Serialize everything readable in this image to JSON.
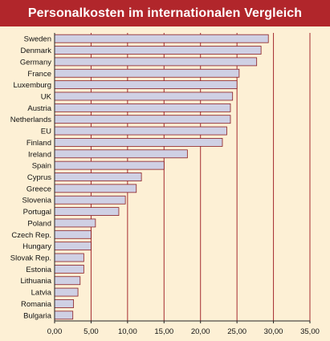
{
  "title": "Personalkosten im internationalen Vergleich",
  "colors": {
    "header": "#b1262b",
    "background": "#fdf0d5",
    "bar_fill": "#cfd0e4",
    "bar_stroke": "#8a1c22",
    "grid": "#a42a2f"
  },
  "chart_data": {
    "type": "bar",
    "orientation": "horizontal",
    "title": "Personalkosten im internationalen Vergleich",
    "categories": [
      "Sweden",
      "Denmark",
      "Germany",
      "France",
      "Luxemburg",
      "UK",
      "Austria",
      "Netherlands",
      "EU",
      "Finland",
      "Ireland",
      "Spain",
      "Cyprus",
      "Greece",
      "Slovenia",
      "Portugal",
      "Poland",
      "Czech Rep.",
      "Hungary",
      "Slovak Rep.",
      "Estonia",
      "Lithuania",
      "Latvia",
      "Romania",
      "Bulgaria"
    ],
    "values": [
      29.3,
      28.3,
      27.7,
      25.3,
      25.0,
      24.4,
      24.1,
      24.1,
      23.6,
      23.0,
      18.2,
      15.0,
      11.9,
      11.2,
      9.7,
      8.8,
      5.6,
      5.0,
      5.0,
      4.0,
      4.0,
      3.5,
      3.2,
      2.6,
      2.5
    ],
    "xlim": [
      0,
      35
    ],
    "xticks": [
      "0,00",
      "5,00",
      "10,00",
      "15,00",
      "20,00",
      "25,00",
      "30,00",
      "35,00"
    ],
    "xlabel": "",
    "ylabel": "",
    "grid": "vertical"
  }
}
